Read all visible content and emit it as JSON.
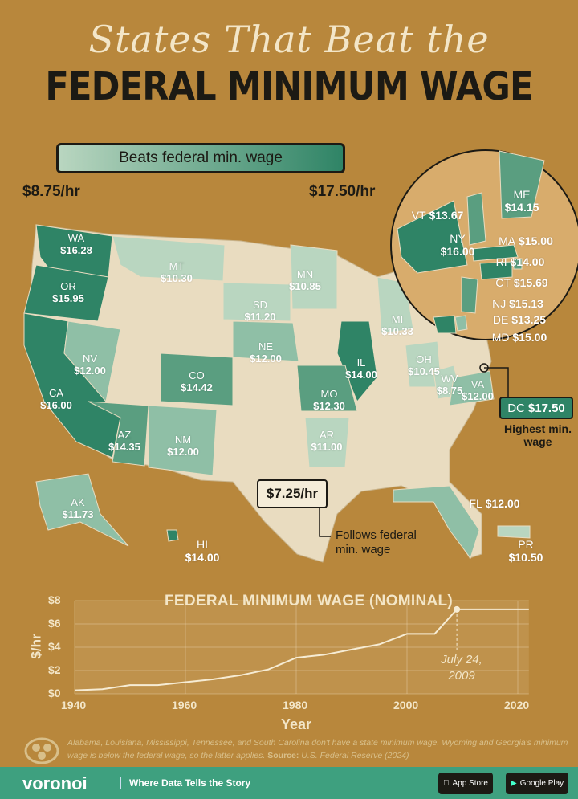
{
  "header": {
    "title_script": "States That Beat the",
    "title_main": "FEDERAL MINIMUM WAGE"
  },
  "legend": {
    "label": "Beats federal min. wage",
    "min": "$8.75/hr",
    "max": "$17.50/hr",
    "colors": {
      "low": "#b9d6c0",
      "high": "#2f8466"
    }
  },
  "colors": {
    "background": "#b8873c",
    "federal": "#e9dcc0",
    "tier1": "#b9d6c0",
    "tier2": "#8fbfa6",
    "tier3": "#5a9e80",
    "tier4": "#2f8466",
    "footer": "#3ea07f"
  },
  "states": [
    {
      "abbr": "WA",
      "wage": "$16.28"
    },
    {
      "abbr": "OR",
      "wage": "$15.95"
    },
    {
      "abbr": "CA",
      "wage": "$16.00"
    },
    {
      "abbr": "NV",
      "wage": "$12.00"
    },
    {
      "abbr": "AZ",
      "wage": "$14.35"
    },
    {
      "abbr": "MT",
      "wage": "$10.30"
    },
    {
      "abbr": "CO",
      "wage": "$14.42"
    },
    {
      "abbr": "NM",
      "wage": "$12.00"
    },
    {
      "abbr": "SD",
      "wage": "$11.20"
    },
    {
      "abbr": "NE",
      "wage": "$12.00"
    },
    {
      "abbr": "MN",
      "wage": "$10.85"
    },
    {
      "abbr": "IL",
      "wage": "$14.00"
    },
    {
      "abbr": "MO",
      "wage": "$12.30"
    },
    {
      "abbr": "AR",
      "wage": "$11.00"
    },
    {
      "abbr": "MI",
      "wage": "$10.33"
    },
    {
      "abbr": "OH",
      "wage": "$10.45"
    },
    {
      "abbr": "WV",
      "wage": "$8.75"
    },
    {
      "abbr": "VA",
      "wage": "$12.00"
    },
    {
      "abbr": "FL",
      "wage": "$12.00"
    },
    {
      "abbr": "AK",
      "wage": "$11.73"
    },
    {
      "abbr": "HI",
      "wage": "$14.00"
    },
    {
      "abbr": "PR",
      "wage": "$10.50"
    },
    {
      "abbr": "NY",
      "wage": "$16.00"
    },
    {
      "abbr": "ME",
      "wage": "$14.15"
    },
    {
      "abbr": "VT",
      "wage": "$13.67"
    },
    {
      "abbr": "MA",
      "wage": "$15.00"
    },
    {
      "abbr": "RI",
      "wage": "$14.00"
    },
    {
      "abbr": "CT",
      "wage": "$15.69"
    },
    {
      "abbr": "NJ",
      "wage": "$15.13"
    },
    {
      "abbr": "DE",
      "wage": "$13.25"
    },
    {
      "abbr": "MD",
      "wage": "$15.00"
    }
  ],
  "federal": {
    "value": "$7.25/hr",
    "note": "Follows federal min. wage"
  },
  "dc": {
    "label": "DC",
    "wage": "$17.50",
    "note": "Highest min. wage"
  },
  "chart_data": {
    "type": "line",
    "title": "FEDERAL MINIMUM WAGE (NOMINAL)",
    "xlabel": "Year",
    "ylabel": "$/hr",
    "xlim": [
      1940,
      2022
    ],
    "ylim": [
      0,
      8
    ],
    "xticks": [
      "1940",
      "1960",
      "1980",
      "2000",
      "2020"
    ],
    "yticks": [
      "$0",
      "$2",
      "$4",
      "$6",
      "$8"
    ],
    "grid": true,
    "x": [
      1940,
      1945,
      1950,
      1955,
      1960,
      1965,
      1970,
      1975,
      1980,
      1985,
      1990,
      1995,
      2000,
      2005,
      2009,
      2022
    ],
    "y": [
      0.3,
      0.4,
      0.75,
      0.75,
      1.0,
      1.25,
      1.6,
      2.1,
      3.1,
      3.35,
      3.8,
      4.25,
      5.15,
      5.15,
      7.25,
      7.25
    ],
    "annotation": {
      "x": 2009,
      "text": "July 24, 2009"
    }
  },
  "footnote": {
    "text": "Alabama, Louisiana, Mississippi, Tennessee, and South Carolina don't have a state minimum wage. Wyoming and Georgia's minimum wage is below the federal wage, so the latter applies.",
    "source_label": "Source:",
    "source": "U.S. Federal Reserve (2024)"
  },
  "footer": {
    "brand": "voronoi",
    "tagline": "Where Data Tells the Story",
    "app_store": "App Store",
    "google_play": "Google Play"
  }
}
